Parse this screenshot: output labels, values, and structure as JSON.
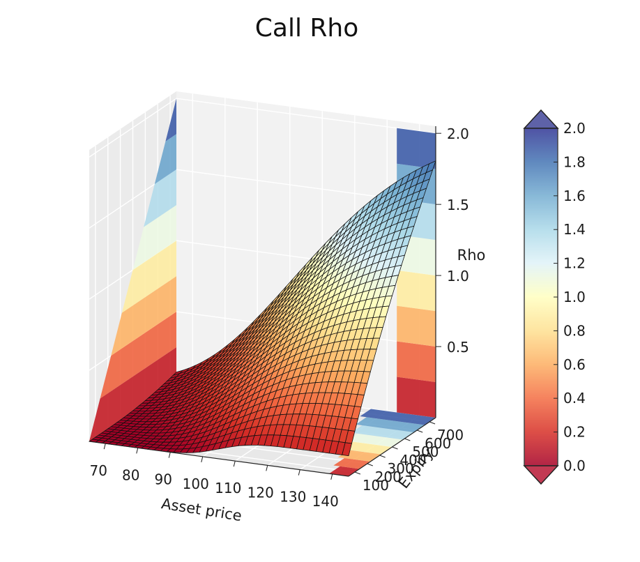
{
  "chart_data": {
    "type": "surface",
    "title": "Call Rho",
    "xlabel": "Asset price",
    "ylabel": "Expiry",
    "zlabel": "Rho",
    "x_ticks": [
      "70",
      "80",
      "90",
      "100",
      "110",
      "120",
      "130",
      "140"
    ],
    "y_ticks": [
      "100",
      "200",
      "300",
      "400",
      "500",
      "600",
      "700"
    ],
    "z_ticks": [
      "0.5",
      "1.0",
      "1.5",
      "2.0"
    ],
    "xlim": [
      65,
      145
    ],
    "ylim": [
      50,
      750
    ],
    "zlim": [
      0,
      2.05
    ],
    "surface": "Rho rises from 0 at low asset price to about 2.0 at asset price 145 and expiry 750, steepest near asset price 100-120",
    "colormap": "RdYlBu",
    "colorbar": {
      "ticks": [
        "0.0",
        "0.2",
        "0.4",
        "0.6",
        "0.8",
        "1.0",
        "1.2",
        "1.4",
        "1.6",
        "1.8",
        "2.0"
      ],
      "range": [
        0,
        2.0
      ],
      "extend": "both"
    },
    "grid": true
  }
}
